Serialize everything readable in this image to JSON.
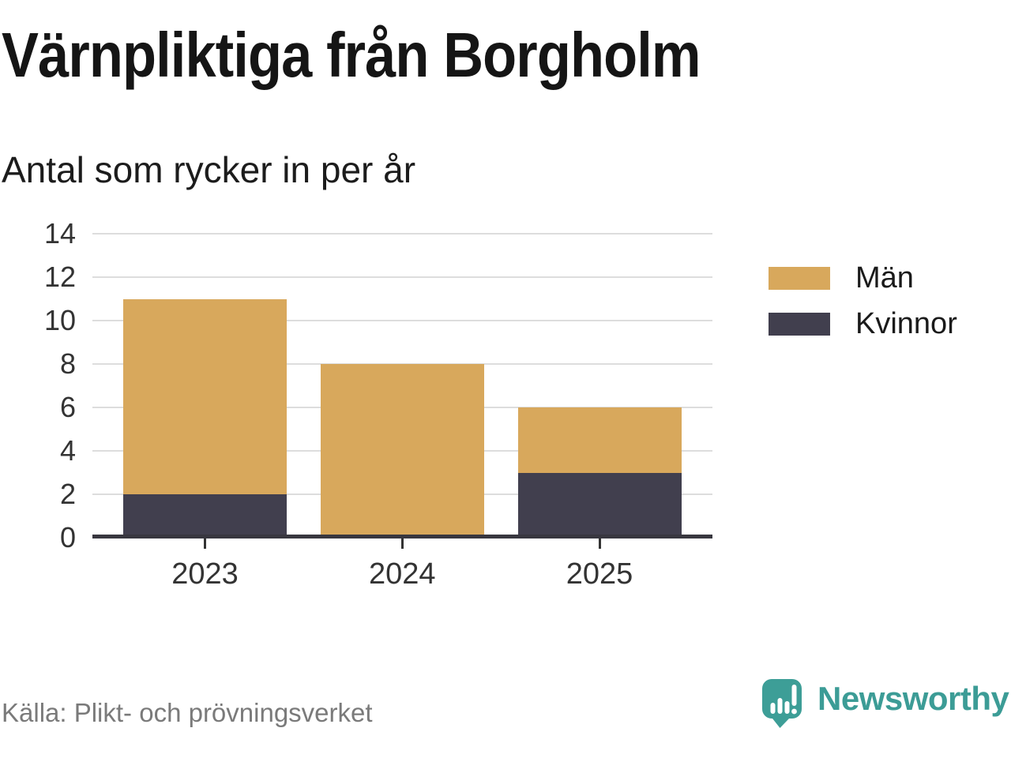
{
  "chart_data": {
    "type": "bar",
    "stacked": true,
    "title": "Värnpliktiga från Borgholm",
    "subtitle": "Antal som rycker in per år",
    "categories": [
      "2023",
      "2024",
      "2025"
    ],
    "series": [
      {
        "name": "Män",
        "color": "#D8A85C",
        "values": [
          9,
          8,
          3
        ]
      },
      {
        "name": "Kvinnor",
        "color": "#413F4E",
        "values": [
          2,
          0,
          3
        ]
      }
    ],
    "stack_bottom_to_top": [
      "Kvinnor",
      "Män"
    ],
    "totals": [
      11,
      8,
      6
    ],
    "xlabel": "",
    "ylabel": "",
    "ylim": [
      0,
      14
    ],
    "yticks": [
      0,
      2,
      4,
      6,
      8,
      10,
      12,
      14
    ],
    "grid": "horizontal-only",
    "legend_position": "right"
  },
  "footer": {
    "source": "Källa: Plikt- och prövningsverket",
    "brand": "Newsworthy",
    "logo_icon": "speech-bubble-bar-chart-icon"
  },
  "palette": {
    "men_gold": "#D8A85C",
    "women_dark": "#413F4E",
    "axis_line": "#38373F",
    "gridline": "#DDDDDD",
    "tick_text": "#333333",
    "title_text": "#151515",
    "source_text": "#7A7A7A",
    "brand_teal": "#3C9C96",
    "background": "#FFFFFF"
  }
}
